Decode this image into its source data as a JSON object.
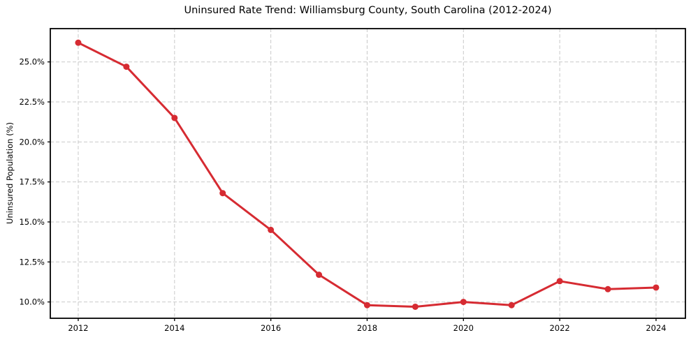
{
  "chart_data": {
    "type": "line",
    "title": "Uninsured Rate Trend: Williamsburg County, South Carolina (2012-2024)",
    "xlabel": "",
    "ylabel": "Uninsured Population (%)",
    "x": [
      2012,
      2013,
      2014,
      2015,
      2016,
      2017,
      2018,
      2019,
      2020,
      2021,
      2022,
      2023,
      2024
    ],
    "values": [
      26.2,
      24.7,
      21.5,
      16.8,
      14.5,
      11.7,
      9.8,
      9.7,
      10.0,
      9.8,
      11.3,
      10.8,
      10.9
    ],
    "xticks": [
      2012,
      2014,
      2016,
      2018,
      2020,
      2022,
      2024
    ],
    "xtick_labels": [
      "2012",
      "2014",
      "2016",
      "2018",
      "2020",
      "2022",
      "2024"
    ],
    "yticks": [
      10.0,
      12.5,
      15.0,
      17.5,
      20.0,
      22.5,
      25.0
    ],
    "ytick_labels": [
      "10.0%",
      "12.5%",
      "15.0%",
      "17.5%",
      "20.0%",
      "22.5%",
      "25.0%"
    ],
    "xlim": [
      2011.42,
      2024.61
    ],
    "ylim": [
      8.98,
      27.08
    ],
    "grid": true,
    "grid_style": "dashed",
    "legend": false,
    "colors": {
      "line": "#d62b32",
      "marker": "#d62b32",
      "grid": "#c9c9c9",
      "spine": "#000000",
      "text": "#000000",
      "background": "#ffffff"
    }
  }
}
